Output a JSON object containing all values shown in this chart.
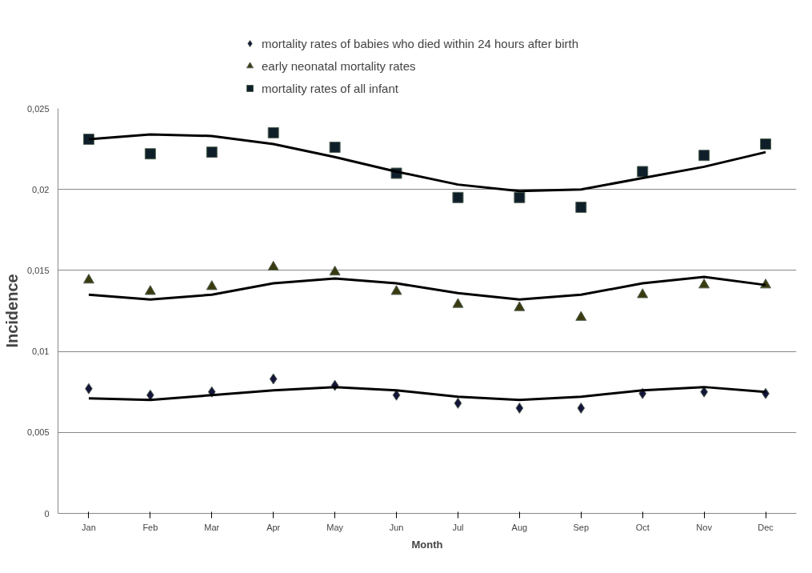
{
  "chart_data": {
    "type": "scatter",
    "xlabel": "Month",
    "ylabel": "Incidence",
    "categories": [
      "Jan",
      "Feb",
      "Mar",
      "Apr",
      "May",
      "Jun",
      "Jul",
      "Aug",
      "Sep",
      "Oct",
      "Nov",
      "Dec"
    ],
    "series": [
      {
        "name": "mortality rates of babies who died within 24 hours after birth",
        "color": "#14143a",
        "marker": "diamond",
        "values": [
          0.0077,
          0.0073,
          0.0075,
          0.0083,
          0.0079,
          0.0073,
          0.0068,
          0.0065,
          0.0065,
          0.0074,
          0.0075,
          0.0074
        ]
      },
      {
        "name": "early neonatal mortality rates",
        "color": "#3a3a10",
        "marker": "triangle",
        "values": [
          0.0144,
          0.0137,
          0.014,
          0.0152,
          0.0149,
          0.0137,
          0.0129,
          0.0127,
          0.0121,
          0.0135,
          0.0141,
          0.0141
        ]
      },
      {
        "name": "mortality rates of all infant",
        "color": "#0f1f2a",
        "marker": "square",
        "values": [
          0.0231,
          0.0222,
          0.0223,
          0.0235,
          0.0226,
          0.021,
          0.0195,
          0.0195,
          0.0189,
          0.0211,
          0.0221,
          0.0228
        ]
      },
      {
        "type": "line",
        "color": "#000000",
        "values": [
          0.0071,
          0.007,
          0.0073,
          0.0076,
          0.0078,
          0.0076,
          0.0072,
          0.007,
          0.0072,
          0.0076,
          0.0078,
          0.0075
        ]
      },
      {
        "type": "line",
        "color": "#000000",
        "values": [
          0.0135,
          0.0132,
          0.0135,
          0.0142,
          0.0145,
          0.0142,
          0.0136,
          0.0132,
          0.0135,
          0.0142,
          0.0146,
          0.0141
        ]
      },
      {
        "type": "line",
        "color": "#000000",
        "values": [
          0.0231,
          0.0234,
          0.0233,
          0.0228,
          0.022,
          0.0211,
          0.0203,
          0.0199,
          0.02,
          0.0207,
          0.0214,
          0.0223
        ]
      }
    ],
    "ylim": [
      0,
      0.025
    ],
    "yticks": [
      0,
      {
        "value": 0.005,
        "label": "0,005"
      },
      {
        "value": 0.01,
        "label": "0,01"
      },
      {
        "value": 0.015,
        "label": "0,015"
      },
      {
        "value": 0.02,
        "label": "0,02"
      },
      {
        "value": 0.025,
        "label": "0,025"
      }
    ],
    "grid": "y",
    "legend": "top"
  }
}
